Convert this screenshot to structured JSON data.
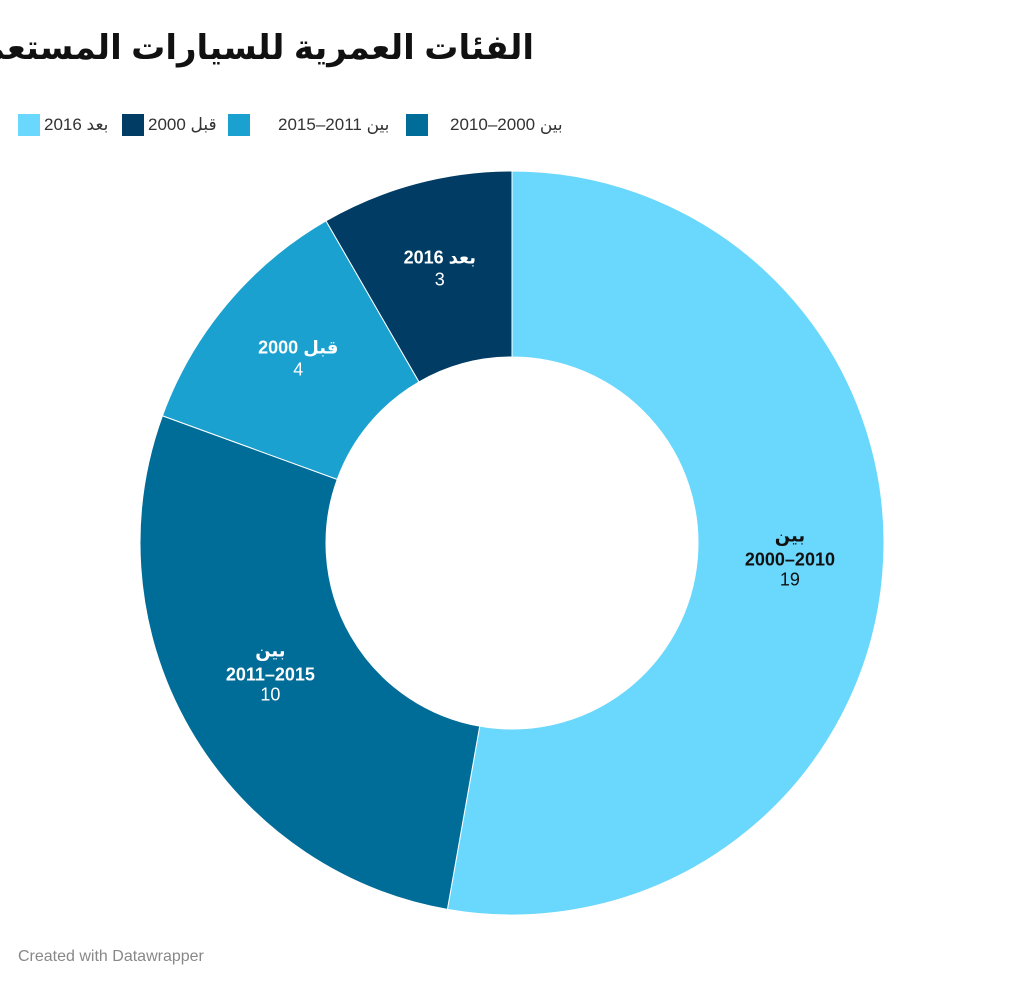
{
  "title": "الفئات العمرية للسيارات المستعملة",
  "footer": "Created with Datawrapper",
  "chart_data": {
    "type": "pie",
    "donut": true,
    "title": "الفئات العمرية للسيارات المستعملة",
    "legend_position": "top-left",
    "slices": [
      {
        "label_line1": "بين",
        "label_line2": "2000–2010",
        "legend": "بين 2000–2010",
        "value": 19,
        "color": "#6ad7fc",
        "text_color": "#111111"
      },
      {
        "label_line1": "بين",
        "label_line2": "2011–2015",
        "legend": "بين 2011–2015",
        "value": 10,
        "color": "#006c98",
        "text_color": "#ffffff"
      },
      {
        "label_line1": "قبل 2000",
        "label_line2": "",
        "legend": "قبل 2000",
        "value": 4,
        "color": "#1ba1cf",
        "text_color": "#ffffff"
      },
      {
        "label_line1": "بعد 2016",
        "label_line2": "",
        "legend": "بعد 2016",
        "value": 3,
        "color": "#003c63",
        "text_color": "#ffffff"
      }
    ],
    "legend_order": [
      3,
      2,
      1,
      0
    ],
    "legend_colors": [
      "#6ad7fc",
      "#003c63",
      "#1ba1cf",
      "#006c98"
    ]
  }
}
